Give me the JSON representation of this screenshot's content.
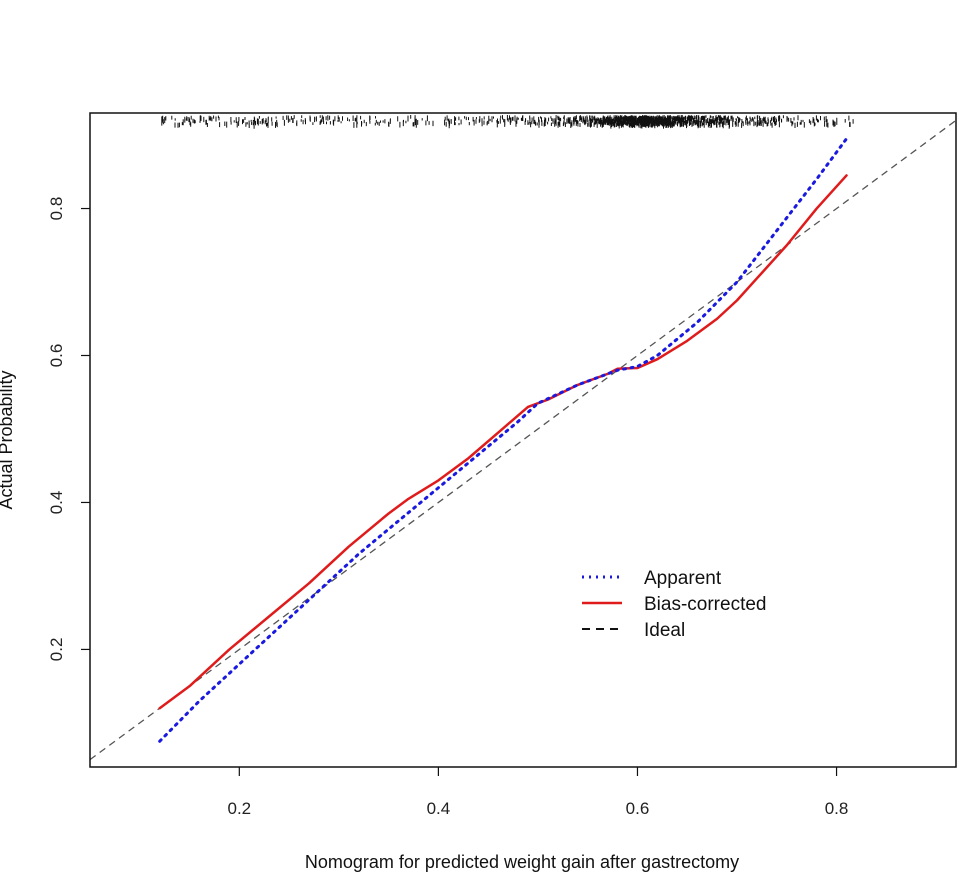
{
  "chart_data": {
    "type": "line",
    "title": "",
    "xlabel": "Nomogram for predicted weight gain after gastrectomy",
    "ylabel": "Actual Probability",
    "xlim": [
      0.05,
      0.92
    ],
    "ylim": [
      0.04,
      0.93
    ],
    "x_ticks": [
      0.2,
      0.4,
      0.6,
      0.8
    ],
    "x_tick_labels": [
      "0.2",
      "0.4",
      "0.6",
      "0.8"
    ],
    "y_ticks": [
      0.2,
      0.4,
      0.6,
      0.8
    ],
    "y_tick_labels": [
      "0.2",
      "0.4",
      "0.6",
      "0.8"
    ],
    "grid": false,
    "legend_position": "bottom-right",
    "series": [
      {
        "name": "Apparent",
        "style": "dotted",
        "color": "#1a1adf",
        "x": [
          0.12,
          0.16,
          0.2,
          0.24,
          0.28,
          0.32,
          0.36,
          0.4,
          0.44,
          0.48,
          0.5,
          0.54,
          0.58,
          0.6,
          0.62,
          0.66,
          0.7,
          0.74,
          0.78,
          0.81
        ],
        "y": [
          0.075,
          0.13,
          0.18,
          0.23,
          0.28,
          0.33,
          0.375,
          0.42,
          0.465,
          0.51,
          0.535,
          0.56,
          0.58,
          0.585,
          0.6,
          0.645,
          0.7,
          0.77,
          0.84,
          0.895
        ]
      },
      {
        "name": "Bias-corrected",
        "style": "solid",
        "color": "#e01b1b",
        "x": [
          0.12,
          0.15,
          0.19,
          0.23,
          0.27,
          0.31,
          0.35,
          0.37,
          0.4,
          0.43,
          0.46,
          0.49,
          0.51,
          0.54,
          0.57,
          0.58,
          0.6,
          0.62,
          0.65,
          0.68,
          0.7,
          0.72,
          0.75,
          0.78,
          0.81
        ],
        "y": [
          0.12,
          0.15,
          0.2,
          0.245,
          0.29,
          0.34,
          0.385,
          0.405,
          0.43,
          0.46,
          0.495,
          0.53,
          0.54,
          0.56,
          0.575,
          0.582,
          0.583,
          0.595,
          0.62,
          0.65,
          0.675,
          0.705,
          0.75,
          0.8,
          0.845
        ]
      },
      {
        "name": "Ideal",
        "style": "dashed",
        "color": "#555555",
        "x": [
          0.05,
          0.92
        ],
        "y": [
          0.05,
          0.92
        ]
      }
    ],
    "rug": {
      "x_range": [
        0.12,
        0.82
      ],
      "cluster_center": 0.605,
      "count": 1400
    }
  }
}
